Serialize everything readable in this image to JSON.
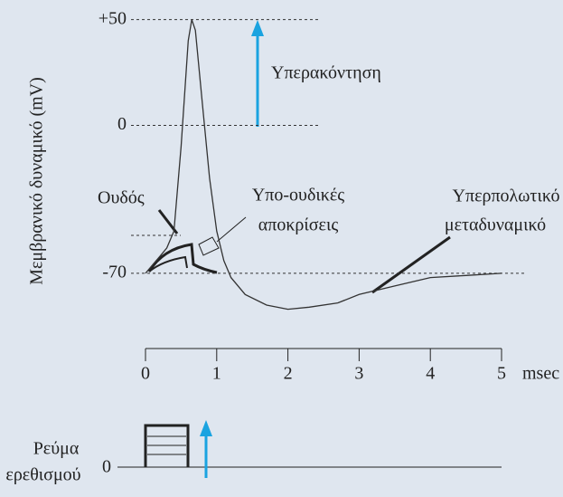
{
  "chart_data": {
    "type": "line",
    "ylabel": "Μεμβρανικό δυναμικό (mV)",
    "xlabel": "msec",
    "x": [
      0,
      0.1,
      0.2,
      0.3,
      0.4,
      0.5,
      0.6,
      0.65,
      0.7,
      0.8,
      0.9,
      1.0,
      1.1,
      1.2,
      1.4,
      1.7,
      2.0,
      2.3,
      2.7,
      3.0,
      3.5,
      4.0,
      4.5,
      5.0
    ],
    "values": [
      -70,
      -66,
      -62,
      -58,
      -50,
      -10,
      40,
      50,
      45,
      10,
      -25,
      -50,
      -64,
      -72,
      -80,
      -85,
      -87,
      -86,
      -84,
      -80,
      -76,
      -72,
      -71,
      -70
    ],
    "color": "#333333",
    "ylim": [
      -100,
      55
    ],
    "yticks": [
      {
        "value": 50,
        "label": "+50"
      },
      0,
      -70
    ],
    "xlim": [
      0,
      5
    ],
    "xticks": [
      0,
      1,
      2,
      3,
      4,
      5
    ],
    "annotations": {
      "overshoot": "Υπερακόντηση",
      "threshold": "Ουδός",
      "subthreshold": [
        "Υπο-ουδικές",
        "αποκρίσεις"
      ],
      "hyperpolarization": [
        "Υπερπολωτικό",
        "μεταδυναμικό"
      ],
      "stimulus": [
        "Ρεύμα",
        "ερεθισμού"
      ],
      "stimulus_zero": "0"
    }
  }
}
